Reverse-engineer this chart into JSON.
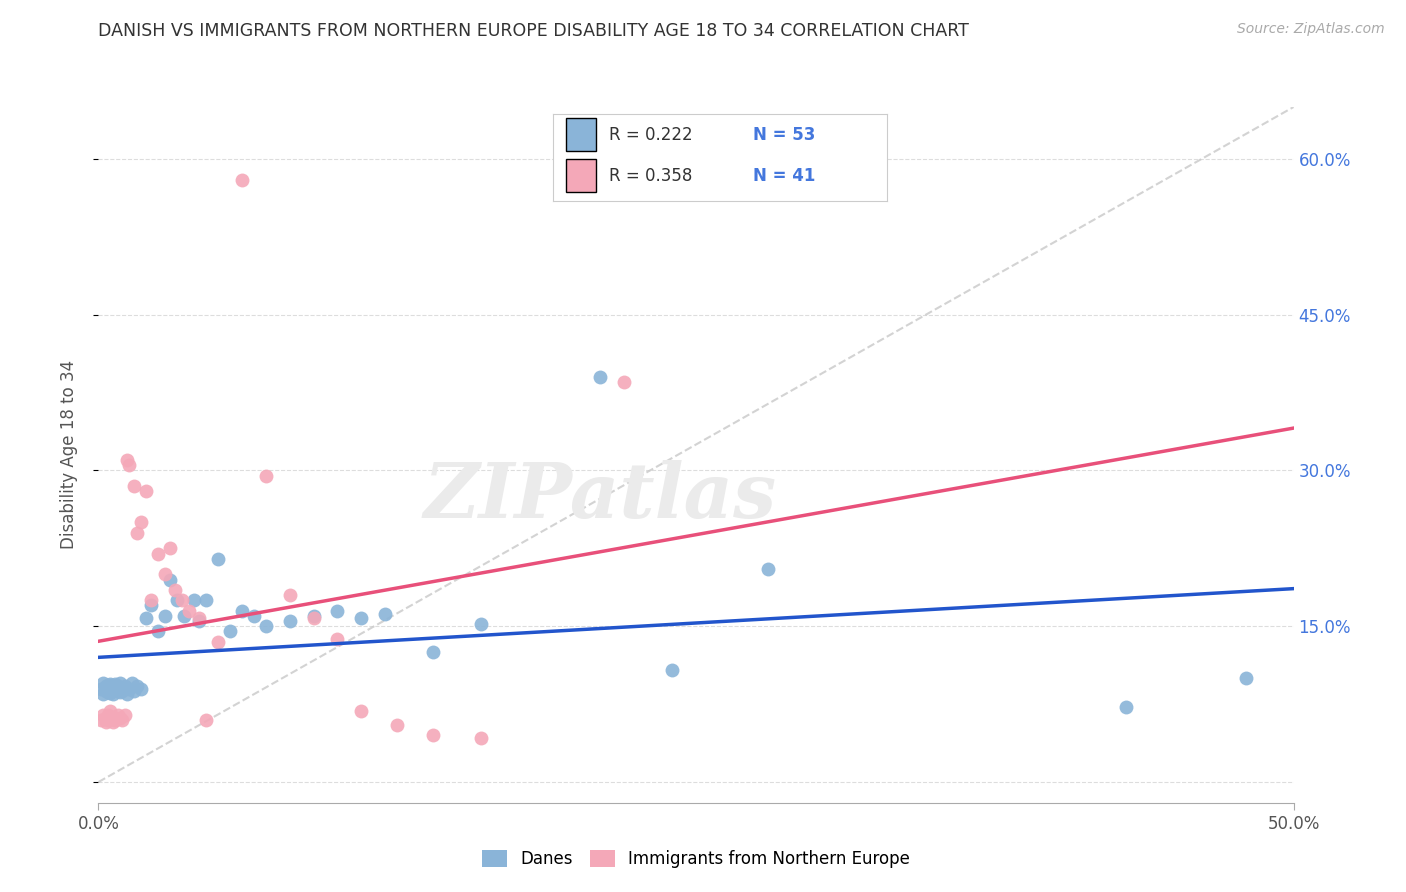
{
  "title": "DANISH VS IMMIGRANTS FROM NORTHERN EUROPE DISABILITY AGE 18 TO 34 CORRELATION CHART",
  "source": "Source: ZipAtlas.com",
  "ylabel": "Disability Age 18 to 34",
  "xlim": [
    0.0,
    0.5
  ],
  "ylim": [
    -0.02,
    0.65
  ],
  "xticks": [
    0.0,
    0.5
  ],
  "xtick_labels": [
    "0.0%",
    "50.0%"
  ],
  "yticks": [
    0.0,
    0.15,
    0.3,
    0.45,
    0.6
  ],
  "right_ytick_labels": [
    "",
    "15.0%",
    "30.0%",
    "45.0%",
    "60.0%"
  ],
  "danes_color": "#8ab4d8",
  "immigrants_color": "#f4a8b8",
  "danes_line_color": "#2255cc",
  "immigrants_line_color": "#e8507a",
  "trend_line_color": "#c8c8c8",
  "danes_R": 0.222,
  "danes_N": 53,
  "immigrants_R": 0.358,
  "immigrants_N": 41,
  "legend_text_color": "#4477dd",
  "watermark": "ZIPatlas",
  "background_color": "#ffffff",
  "grid_color": "#dddddd",
  "danes_x": [
    0.001,
    0.002,
    0.002,
    0.003,
    0.003,
    0.004,
    0.004,
    0.005,
    0.005,
    0.006,
    0.006,
    0.007,
    0.007,
    0.008,
    0.008,
    0.009,
    0.009,
    0.01,
    0.01,
    0.011,
    0.012,
    0.013,
    0.014,
    0.015,
    0.016,
    0.018,
    0.02,
    0.022,
    0.025,
    0.028,
    0.03,
    0.033,
    0.036,
    0.04,
    0.042,
    0.045,
    0.05,
    0.055,
    0.06,
    0.065,
    0.07,
    0.08,
    0.09,
    0.1,
    0.11,
    0.12,
    0.14,
    0.16,
    0.21,
    0.24,
    0.28,
    0.43,
    0.48
  ],
  "danes_y": [
    0.09,
    0.085,
    0.095,
    0.088,
    0.092,
    0.087,
    0.093,
    0.086,
    0.094,
    0.085,
    0.091,
    0.089,
    0.094,
    0.088,
    0.092,
    0.087,
    0.095,
    0.09,
    0.088,
    0.092,
    0.085,
    0.09,
    0.095,
    0.088,
    0.092,
    0.09,
    0.158,
    0.17,
    0.145,
    0.16,
    0.195,
    0.175,
    0.16,
    0.175,
    0.155,
    0.175,
    0.215,
    0.145,
    0.165,
    0.16,
    0.15,
    0.155,
    0.16,
    0.165,
    0.158,
    0.162,
    0.125,
    0.152,
    0.39,
    0.108,
    0.205,
    0.072,
    0.1
  ],
  "immigrants_x": [
    0.001,
    0.002,
    0.003,
    0.003,
    0.004,
    0.004,
    0.005,
    0.005,
    0.006,
    0.006,
    0.007,
    0.008,
    0.009,
    0.01,
    0.011,
    0.012,
    0.013,
    0.015,
    0.016,
    0.018,
    0.02,
    0.022,
    0.025,
    0.028,
    0.03,
    0.032,
    0.035,
    0.038,
    0.042,
    0.045,
    0.05,
    0.06,
    0.07,
    0.08,
    0.09,
    0.1,
    0.11,
    0.125,
    0.14,
    0.16,
    0.22
  ],
  "immigrants_y": [
    0.06,
    0.065,
    0.062,
    0.058,
    0.065,
    0.06,
    0.062,
    0.068,
    0.058,
    0.063,
    0.06,
    0.065,
    0.062,
    0.06,
    0.065,
    0.31,
    0.305,
    0.285,
    0.24,
    0.25,
    0.28,
    0.175,
    0.22,
    0.2,
    0.225,
    0.185,
    0.175,
    0.165,
    0.158,
    0.06,
    0.135,
    0.58,
    0.295,
    0.18,
    0.158,
    0.138,
    0.068,
    0.055,
    0.045,
    0.042,
    0.385
  ]
}
